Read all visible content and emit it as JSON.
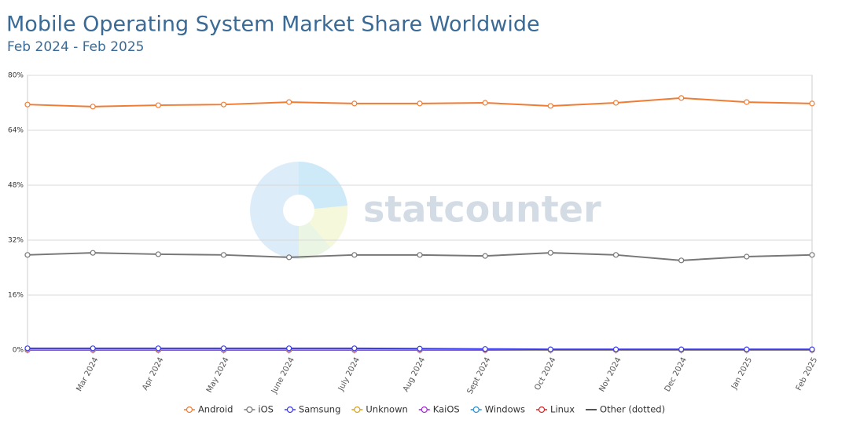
{
  "chart_data": {
    "type": "line",
    "title": "Mobile Operating System Market Share Worldwide",
    "subtitle": "Feb 2024 - Feb 2025",
    "watermark": "statcounter",
    "categories": [
      null,
      "Mar 2024",
      "Apr 2024",
      "May 2024",
      "June 2024",
      "July 2024",
      "Aug 2024",
      "Sept 2024",
      "Oct 2024",
      "Nov 2024",
      "Dec 2024",
      "Jan 2025",
      "Feb 2025"
    ],
    "series": [
      {
        "name": "Android",
        "color": "#f07c34",
        "values": [
          71.5,
          70.9,
          71.3,
          71.5,
          72.2,
          71.8,
          71.8,
          72.0,
          71.1,
          72.0,
          73.4,
          72.2,
          71.8
        ]
      },
      {
        "name": "iOS",
        "color": "#777777",
        "values": [
          27.7,
          28.3,
          27.9,
          27.7,
          27.0,
          27.7,
          27.7,
          27.4,
          28.3,
          27.7,
          26.1,
          27.2,
          27.7
        ]
      },
      {
        "name": "Samsung",
        "color": "#3a3af0",
        "values": [
          0.5,
          0.5,
          0.5,
          0.5,
          0.5,
          0.5,
          0.4,
          0.3,
          0.2,
          0.2,
          0.2,
          0.2,
          0.2
        ]
      },
      {
        "name": "Unknown",
        "color": "#d9a21b",
        "values": [
          0.2,
          0.2,
          0.2,
          0.2,
          0.2,
          0.2,
          0.2,
          0.2,
          0.1,
          0.1,
          0.1,
          0.1,
          0.1
        ]
      },
      {
        "name": "KaiOS",
        "color": "#a12bd6",
        "values": [
          0.1,
          0.1,
          0.1,
          0.1,
          0.1,
          0.1,
          0.1,
          0.1,
          0.1,
          0.1,
          0.1,
          0.1,
          0.1
        ]
      },
      {
        "name": "Windows",
        "color": "#2f8fd0",
        "values": [
          0,
          0,
          0,
          0,
          0,
          0,
          0,
          0,
          0,
          0,
          0,
          0,
          0
        ]
      },
      {
        "name": "Linux",
        "color": "#d62828",
        "values": [
          0,
          0,
          0,
          0,
          0,
          0,
          0,
          0,
          0,
          0,
          0,
          0,
          0
        ]
      },
      {
        "name": "Other (dotted)",
        "color": "#555555",
        "dash": "dotted",
        "values": [
          0,
          0,
          0,
          0,
          0,
          0,
          0,
          0,
          0,
          0,
          0,
          0,
          0
        ]
      }
    ],
    "ylim": [
      0,
      80
    ],
    "yticks": [
      {
        "value": 0,
        "label": "0%"
      },
      {
        "value": 16,
        "label": "16%"
      },
      {
        "value": 32,
        "label": "32%"
      },
      {
        "value": 48,
        "label": "48%"
      },
      {
        "value": 64,
        "label": "64%"
      },
      {
        "value": 80,
        "label": "80%"
      }
    ],
    "grid": true
  }
}
